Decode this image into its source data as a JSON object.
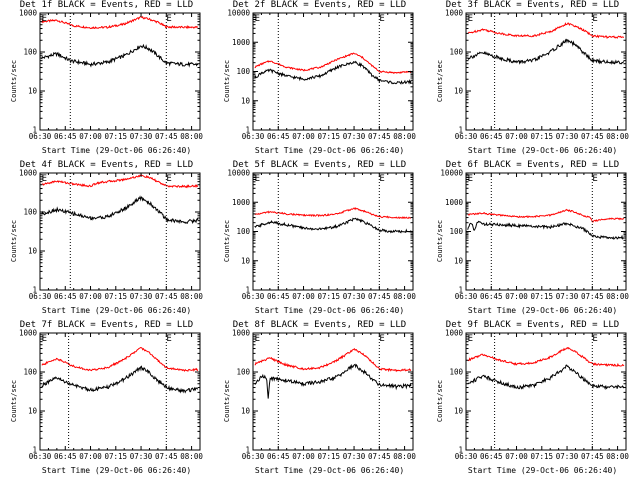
{
  "chart_data": [
    {
      "type": "line",
      "title": "Det 1f BLACK = Events, RED = LLD",
      "xlabel": "Start Time (29-Oct-06 06:26:40)",
      "ylabel": "Counts/sec",
      "yscale": "log",
      "ylim": [
        1,
        1000
      ],
      "xlim": [
        "06:30",
        "08:05"
      ],
      "xticks": [
        "06:30",
        "06:45",
        "07:00",
        "07:15",
        "07:30",
        "07:45",
        "08:00"
      ],
      "yticks": [
        "1",
        "10",
        "100",
        "1000"
      ],
      "markers": [
        {
          "label": "E",
          "x": "06:31"
        },
        {
          "label": "E",
          "x": "07:45"
        }
      ],
      "dotted_x": [
        "06:48",
        "07:45"
      ],
      "series": [
        {
          "color": "#ff0000",
          "x": [
            "06:31",
            "06:40",
            "06:50",
            "07:00",
            "07:10",
            "07:20",
            "07:30",
            "07:35",
            "07:40",
            "07:45",
            "07:55",
            "08:04"
          ],
          "values": [
            600,
            650,
            470,
            420,
            430,
            520,
            780,
            690,
            580,
            440,
            430,
            430
          ]
        },
        {
          "color": "#000000",
          "x": [
            "06:31",
            "06:40",
            "06:48",
            "07:00",
            "07:10",
            "07:20",
            "07:30",
            "07:35",
            "07:40",
            "07:45",
            "07:55",
            "08:04"
          ],
          "values": [
            70,
            90,
            60,
            48,
            55,
            80,
            145,
            120,
            80,
            52,
            48,
            48
          ]
        }
      ]
    },
    {
      "type": "line",
      "title": "Det 2f BLACK = Events, RED = LLD",
      "xlabel": "Start Time (29-Oct-06 06:26:40)",
      "ylabel": "Counts/sec",
      "yscale": "log",
      "ylim": [
        1,
        10000
      ],
      "xlim": [
        "06:30",
        "08:05"
      ],
      "xticks": [
        "06:30",
        "06:45",
        "07:00",
        "07:15",
        "07:30",
        "07:45",
        "08:00"
      ],
      "yticks": [
        "1",
        "10",
        "100",
        "1000",
        "10000"
      ],
      "markers": [
        {
          "label": "E",
          "x": "06:31"
        },
        {
          "label": "E",
          "x": "07:45"
        }
      ],
      "dotted_x": [
        "06:45",
        "07:45"
      ],
      "series": [
        {
          "color": "#ff0000",
          "x": [
            "06:31",
            "06:35",
            "06:40",
            "06:50",
            "07:00",
            "07:10",
            "07:20",
            "07:30",
            "07:35",
            "07:40",
            "07:45",
            "07:55",
            "08:04"
          ],
          "values": [
            140,
            180,
            230,
            140,
            110,
            140,
            260,
            420,
            300,
            170,
            100,
            90,
            100
          ]
        },
        {
          "color": "#000000",
          "x": [
            "06:31",
            "06:35",
            "06:40",
            "06:50",
            "07:00",
            "07:10",
            "07:20",
            "07:30",
            "07:35",
            "07:40",
            "07:45",
            "07:55",
            "08:04"
          ],
          "values": [
            60,
            90,
            110,
            70,
            55,
            70,
            140,
            210,
            160,
            80,
            50,
            40,
            45
          ]
        }
      ]
    },
    {
      "type": "line",
      "title": "Det 3f BLACK = Events, RED = LLD",
      "xlabel": "Start Time (29-Oct-06 06:26:40)",
      "ylabel": "Counts/sec",
      "yscale": "log",
      "ylim": [
        1,
        1000
      ],
      "xlim": [
        "06:30",
        "08:05"
      ],
      "xticks": [
        "06:30",
        "06:45",
        "07:00",
        "07:15",
        "07:30",
        "07:45",
        "08:00"
      ],
      "yticks": [
        "1",
        "10",
        "100",
        "1000"
      ],
      "markers": [
        {
          "label": "E",
          "x": "06:31"
        },
        {
          "label": "E",
          "x": "07:45"
        }
      ],
      "dotted_x": [
        "06:47",
        "07:45"
      ],
      "series": [
        {
          "color": "#ff0000",
          "x": [
            "06:31",
            "06:40",
            "06:50",
            "07:00",
            "07:10",
            "07:20",
            "07:30",
            "07:35",
            "07:40",
            "07:45",
            "07:55",
            "08:04"
          ],
          "values": [
            300,
            380,
            300,
            260,
            260,
            330,
            540,
            450,
            360,
            260,
            240,
            240
          ]
        },
        {
          "color": "#000000",
          "x": [
            "06:31",
            "06:40",
            "06:50",
            "07:00",
            "07:10",
            "07:20",
            "07:30",
            "07:35",
            "07:40",
            "07:45",
            "07:55",
            "08:04"
          ],
          "values": [
            70,
            95,
            70,
            55,
            60,
            100,
            200,
            150,
            95,
            60,
            55,
            55
          ]
        }
      ]
    },
    {
      "type": "line",
      "title": "Det 4f BLACK = Events, RED = LLD",
      "xlabel": "Start Time (29-Oct-06 06:26:40)",
      "ylabel": "Counts/sec",
      "yscale": "log",
      "ylim": [
        1,
        1000
      ],
      "xlim": [
        "06:30",
        "08:05"
      ],
      "xticks": [
        "06:30",
        "06:45",
        "07:00",
        "07:15",
        "07:30",
        "07:45",
        "08:00"
      ],
      "yticks": [
        "1",
        "10",
        "100",
        "1000"
      ],
      "markers": [
        {
          "label": "E",
          "x": "06:31"
        },
        {
          "label": "E",
          "x": "07:45"
        }
      ],
      "dotted_x": [
        "06:48",
        "07:45"
      ],
      "series": [
        {
          "color": "#ff0000",
          "x": [
            "06:31",
            "06:40",
            "06:50",
            "07:00",
            "07:04",
            "07:10",
            "07:20",
            "07:30",
            "07:35",
            "07:40",
            "07:45",
            "07:55",
            "08:04"
          ],
          "values": [
            500,
            620,
            520,
            460,
            560,
            600,
            680,
            860,
            760,
            600,
            460,
            450,
            470
          ]
        },
        {
          "color": "#000000",
          "x": [
            "06:31",
            "06:40",
            "06:50",
            "07:00",
            "07:10",
            "07:20",
            "07:30",
            "07:35",
            "07:40",
            "07:45",
            "07:55",
            "08:04"
          ],
          "values": [
            90,
            115,
            90,
            70,
            75,
            120,
            230,
            170,
            110,
            65,
            55,
            62
          ]
        }
      ]
    },
    {
      "type": "line",
      "title": "Det 5f BLACK = Events, RED = LLD",
      "xlabel": "Start Time (29-Oct-06 06:26:40)",
      "ylabel": "Counts/sec",
      "yscale": "log",
      "ylim": [
        1,
        10000
      ],
      "xlim": [
        "06:30",
        "08:05"
      ],
      "xticks": [
        "06:30",
        "06:45",
        "07:00",
        "07:15",
        "07:30",
        "07:45",
        "08:00"
      ],
      "yticks": [
        "1",
        "10",
        "100",
        "1000",
        "10000"
      ],
      "markers": [
        {
          "label": "E",
          "x": "06:31"
        },
        {
          "label": "E",
          "x": "07:45"
        }
      ],
      "dotted_x": [
        "06:45",
        "07:45"
      ],
      "series": [
        {
          "color": "#ff0000",
          "x": [
            "06:31",
            "06:40",
            "06:50",
            "07:00",
            "07:10",
            "07:20",
            "07:30",
            "07:35",
            "07:40",
            "07:45",
            "07:55",
            "08:04"
          ],
          "values": [
            380,
            470,
            400,
            360,
            350,
            400,
            620,
            520,
            400,
            320,
            300,
            300
          ]
        },
        {
          "color": "#000000",
          "x": [
            "06:31",
            "06:40",
            "06:50",
            "07:00",
            "07:10",
            "07:20",
            "07:30",
            "07:35",
            "07:40",
            "07:45",
            "07:55",
            "08:04"
          ],
          "values": [
            140,
            210,
            170,
            130,
            120,
            150,
            270,
            220,
            160,
            110,
            100,
            105
          ]
        }
      ]
    },
    {
      "type": "line",
      "title": "Det 6f BLACK = Events, RED = LLD",
      "xlabel": "Start Time (29-Oct-06 06:26:40)",
      "ylabel": "Counts/sec",
      "yscale": "log",
      "ylim": [
        1,
        10000
      ],
      "xlim": [
        "06:30",
        "08:05"
      ],
      "xticks": [
        "06:30",
        "06:45",
        "07:00",
        "07:15",
        "07:30",
        "07:45",
        "08:00"
      ],
      "yticks": [
        "1",
        "10",
        "100",
        "1000",
        "10000"
      ],
      "markers": [
        {
          "label": "E",
          "x": "06:31"
        },
        {
          "label": "E",
          "x": "07:45"
        }
      ],
      "dotted_x": [
        "06:45",
        "07:45"
      ],
      "series": [
        {
          "color": "#ff0000",
          "x": [
            "06:31",
            "06:40",
            "06:50",
            "07:00",
            "07:10",
            "07:20",
            "07:30",
            "07:35",
            "07:40",
            "07:44",
            "07:45",
            "07:55",
            "08:04"
          ],
          "values": [
            380,
            420,
            360,
            320,
            320,
            360,
            540,
            460,
            340,
            300,
            220,
            280,
            270
          ]
        },
        {
          "color": "#000000",
          "x": [
            "06:31",
            "06:33",
            "06:35",
            "06:37",
            "06:40",
            "06:50",
            "07:00",
            "07:10",
            "07:20",
            "07:30",
            "07:35",
            "07:40",
            "07:45",
            "07:55",
            "08:04"
          ],
          "values": [
            120,
            200,
            110,
            220,
            180,
            170,
            160,
            150,
            140,
            190,
            150,
            120,
            70,
            60,
            62
          ]
        }
      ]
    },
    {
      "type": "line",
      "title": "Det 7f BLACK = Events, RED = LLD",
      "xlabel": "Start Time (29-Oct-06 06:26:40)",
      "ylabel": "Counts/sec",
      "yscale": "log",
      "ylim": [
        1,
        1000
      ],
      "xlim": [
        "06:30",
        "08:05"
      ],
      "xticks": [
        "06:30",
        "06:45",
        "07:00",
        "07:15",
        "07:30",
        "07:45",
        "08:00"
      ],
      "yticks": [
        "1",
        "10",
        "100",
        "1000"
      ],
      "markers": [
        {
          "label": "E",
          "x": "06:31"
        },
        {
          "label": "E",
          "x": "07:45"
        }
      ],
      "dotted_x": [
        "06:47",
        "07:45"
      ],
      "series": [
        {
          "color": "#ff0000",
          "x": [
            "06:31",
            "06:40",
            "06:50",
            "07:00",
            "07:10",
            "07:20",
            "07:30",
            "07:35",
            "07:40",
            "07:45",
            "07:55",
            "08:04"
          ],
          "values": [
            150,
            220,
            140,
            110,
            130,
            210,
            420,
            310,
            200,
            130,
            110,
            115
          ]
        },
        {
          "color": "#000000",
          "x": [
            "06:31",
            "06:40",
            "06:50",
            "07:00",
            "07:10",
            "07:20",
            "07:30",
            "07:35",
            "07:40",
            "07:45",
            "07:55",
            "08:04"
          ],
          "values": [
            45,
            70,
            45,
            35,
            40,
            65,
            130,
            95,
            60,
            40,
            33,
            36
          ]
        }
      ]
    },
    {
      "type": "line",
      "title": "Det 8f BLACK = Events, RED = LLD",
      "xlabel": "Start Time (29-Oct-06 06:26:40)",
      "ylabel": "Counts/sec",
      "yscale": "log",
      "ylim": [
        1,
        1000
      ],
      "xlim": [
        "06:30",
        "08:05"
      ],
      "xticks": [
        "06:30",
        "06:45",
        "07:00",
        "07:15",
        "07:30",
        "07:45",
        "08:00"
      ],
      "yticks": [
        "1",
        "10",
        "100",
        "1000"
      ],
      "markers": [
        {
          "label": "E",
          "x": "06:31"
        },
        {
          "label": "E",
          "x": "07:45"
        }
      ],
      "dotted_x": [
        "06:45",
        "07:45"
      ],
      "series": [
        {
          "color": "#ff0000",
          "x": [
            "06:31",
            "06:40",
            "06:50",
            "07:00",
            "07:10",
            "07:20",
            "07:30",
            "07:35",
            "07:40",
            "07:45",
            "07:55",
            "08:04"
          ],
          "values": [
            160,
            230,
            150,
            120,
            130,
            200,
            380,
            300,
            190,
            120,
            110,
            115
          ]
        },
        {
          "color": "#000000",
          "x": [
            "06:31",
            "06:36",
            "06:38",
            "06:39",
            "06:40",
            "06:50",
            "07:00",
            "07:10",
            "07:20",
            "07:30",
            "07:35",
            "07:40",
            "07:45",
            "07:55",
            "08:04"
          ],
          "values": [
            50,
            80,
            70,
            22,
            70,
            60,
            50,
            55,
            75,
            150,
            110,
            70,
            48,
            42,
            45
          ]
        }
      ]
    },
    {
      "type": "line",
      "title": "Det 9f BLACK = Events, RED = LLD",
      "xlabel": "Start Time (29-Oct-06 06:26:40)",
      "ylabel": "Counts/sec",
      "yscale": "log",
      "ylim": [
        1,
        1000
      ],
      "xlim": [
        "06:30",
        "08:05"
      ],
      "xticks": [
        "06:30",
        "06:45",
        "07:00",
        "07:15",
        "07:30",
        "07:45",
        "08:00"
      ],
      "yticks": [
        "1",
        "10",
        "100",
        "1000"
      ],
      "markers": [
        {
          "label": "E",
          "x": "06:31"
        },
        {
          "label": "E",
          "x": "07:45"
        }
      ],
      "dotted_x": [
        "06:47",
        "07:45"
      ],
      "series": [
        {
          "color": "#ff0000",
          "x": [
            "06:31",
            "06:40",
            "06:50",
            "07:00",
            "07:10",
            "07:20",
            "07:30",
            "07:35",
            "07:40",
            "07:45",
            "07:55",
            "08:04"
          ],
          "values": [
            200,
            280,
            200,
            160,
            170,
            240,
            420,
            330,
            230,
            160,
            150,
            150
          ]
        },
        {
          "color": "#000000",
          "x": [
            "06:31",
            "06:40",
            "06:50",
            "07:00",
            "07:10",
            "07:20",
            "07:30",
            "07:35",
            "07:40",
            "07:45",
            "07:55",
            "08:04"
          ],
          "values": [
            50,
            80,
            55,
            40,
            45,
            70,
            140,
            100,
            65,
            45,
            40,
            42
          ]
        }
      ]
    }
  ]
}
